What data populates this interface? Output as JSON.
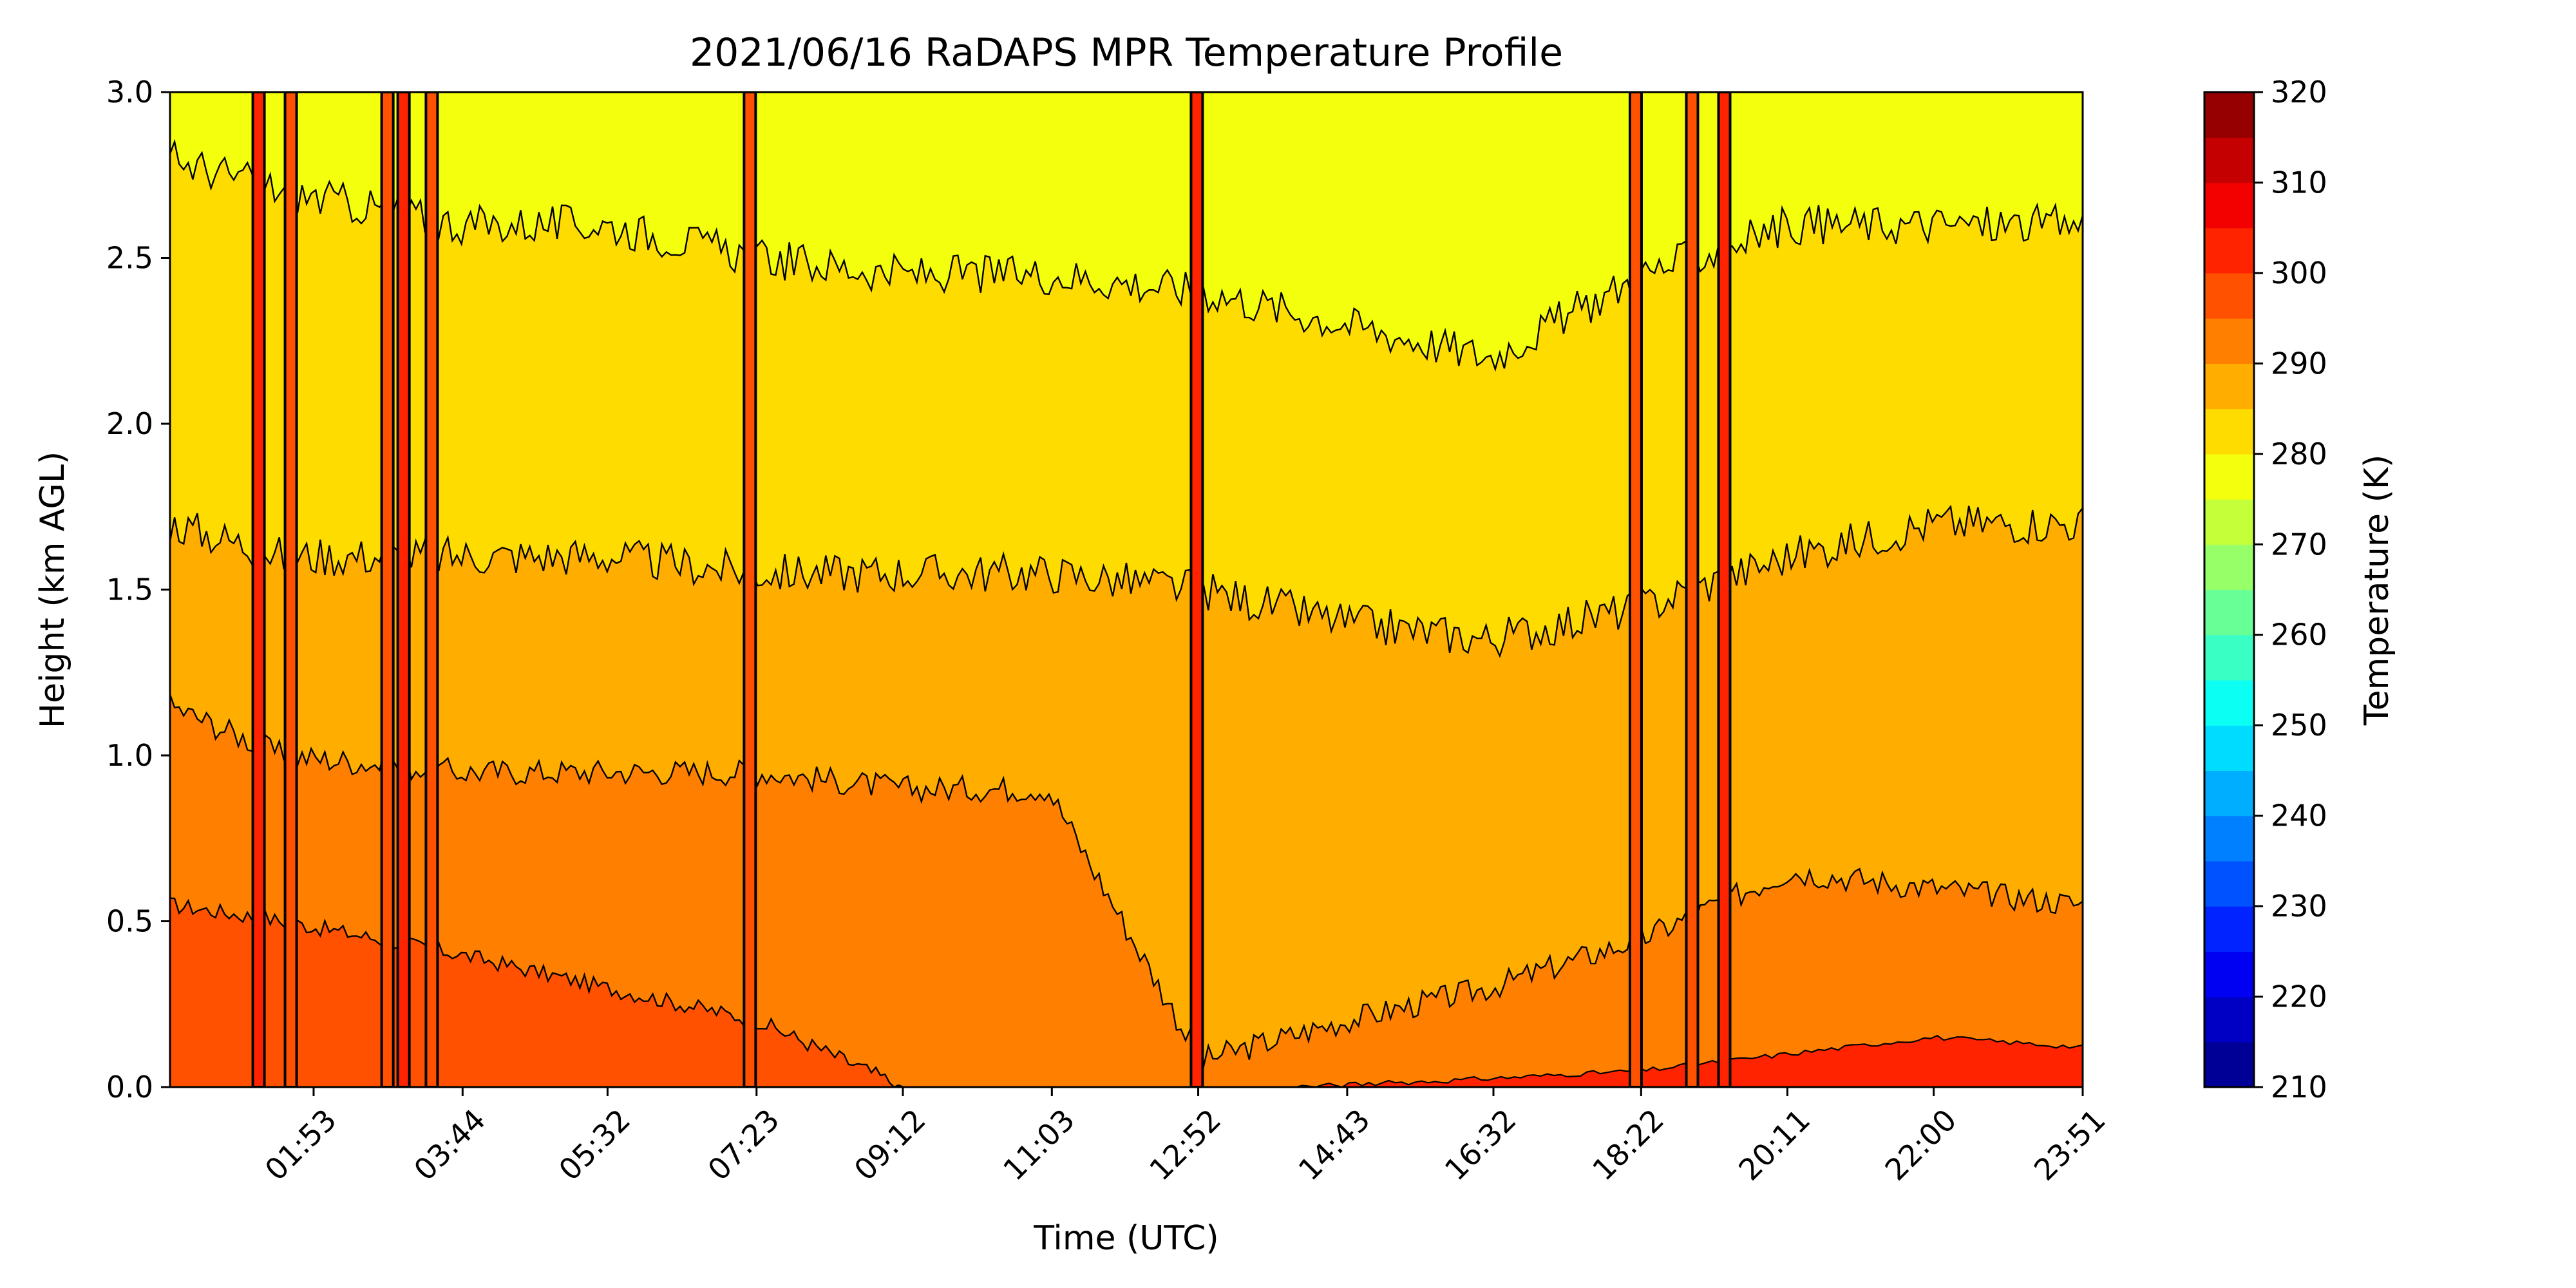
{
  "chart_data": {
    "type": "heatmap",
    "subtype": "filled-contour",
    "title": "2021/06/16 RaDAPS MPR Temperature Profile",
    "xlabel": "Time (UTC)",
    "ylabel": "Height (km AGL)",
    "x_ticks": [
      "01:53",
      "03:44",
      "05:32",
      "07:23",
      "09:12",
      "11:03",
      "12:52",
      "14:43",
      "16:32",
      "18:22",
      "20:11",
      "22:00",
      "23:51"
    ],
    "x_tick_hours": [
      1.883,
      3.733,
      5.533,
      7.383,
      9.2,
      11.05,
      12.867,
      14.717,
      16.533,
      18.367,
      20.183,
      22.0,
      23.85
    ],
    "xlim_hours": [
      0.1,
      23.85
    ],
    "ylim": [
      0.0,
      3.0
    ],
    "y_ticks": [
      0.0,
      0.5,
      1.0,
      1.5,
      2.0,
      2.5,
      3.0
    ],
    "colorbar": {
      "label": "Temperature (K)",
      "range": [
        210,
        320
      ],
      "ticks": [
        210,
        220,
        230,
        240,
        250,
        260,
        270,
        280,
        290,
        300,
        310,
        320
      ],
      "step": 5,
      "colormap": "jet"
    },
    "contour_isotherms_K": [
      295,
      290,
      285,
      280,
      275
    ],
    "isotherm_heights_km": {
      "times_hours": [
        0.1,
        1.5,
        3.7,
        5.5,
        7.4,
        9.2,
        11.0,
        12.9,
        14.7,
        16.5,
        18.4,
        20.2,
        22.0,
        23.85
      ],
      "295": [
        0.55,
        0.5,
        0.4,
        0.3,
        0.2,
        0.0,
        0.0,
        0.0,
        0.0,
        0.0,
        0.0,
        0.0,
        0.0,
        0.0
      ],
      "290": [
        1.15,
        1.0,
        0.95,
        0.95,
        0.95,
        0.9,
        0.9,
        0.08,
        0.2,
        0.3,
        0.45,
        0.65,
        0.6,
        0.55
      ],
      "285": [
        1.7,
        1.6,
        1.6,
        1.6,
        1.55,
        1.55,
        1.55,
        1.5,
        1.4,
        1.35,
        1.45,
        1.6,
        1.7,
        1.7
      ],
      "280": [
        2.8,
        2.7,
        2.6,
        2.6,
        2.5,
        2.45,
        2.45,
        2.4,
        2.3,
        2.2,
        2.45,
        2.6,
        2.6,
        2.6
      ]
    },
    "surface_300K_height_km": {
      "times_hours": [
        14.0,
        16.0,
        18.4,
        20.2,
        22.0,
        23.85
      ],
      "values": [
        0.0,
        0.02,
        0.05,
        0.1,
        0.15,
        0.12
      ]
    },
    "outlier_columns_hours": [
      1.2,
      1.6,
      2.8,
      3.0,
      3.35,
      7.3,
      12.85,
      18.3,
      19.0,
      19.4
    ],
    "layer_temperatures_K": {
      "surface_layer": 297.5,
      "layer_1": 292.5,
      "layer_2": 287.5,
      "layer_3": 282.5,
      "top_layer": 277.5
    }
  }
}
